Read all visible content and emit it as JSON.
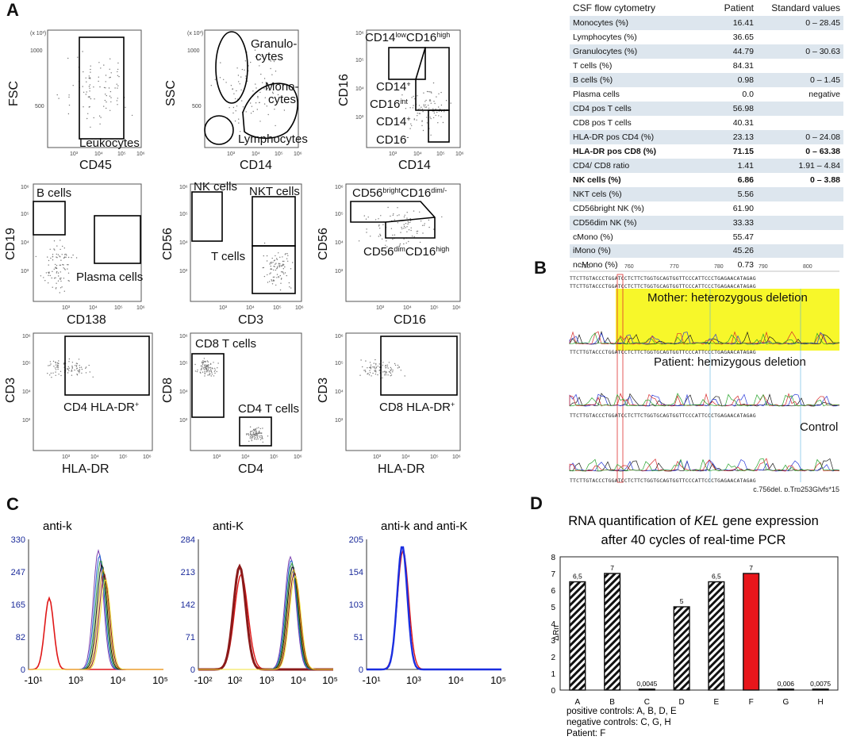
{
  "panels": {
    "a": "A",
    "b": "B",
    "c": "C",
    "d": "D"
  },
  "flow": {
    "p1": {
      "ylabel": "FSC",
      "xlabel": "CD45",
      "gate": "Leukocytes",
      "yunit": "(x 10³)",
      "yticks": [
        "1000",
        "500"
      ],
      "xticks": [
        "10³",
        "10⁴",
        "10⁵",
        "10⁶"
      ]
    },
    "p2": {
      "ylabel": "SSC",
      "xlabel": "CD14",
      "gran1": "Granulo-",
      "gran2": "cytes",
      "mono1": "Mono-",
      "mono2": "cytes",
      "lymph": "Lymphocytes",
      "yunit": "(x 10³)",
      "yticks": [
        "1000",
        "500"
      ],
      "xticks": [
        "10³",
        "10⁴",
        "10⁵",
        "10⁶"
      ]
    },
    "p3": {
      "ylabel": "CD16",
      "xlabel": "CD14",
      "top_a": "CD14",
      "top_sup1": "low",
      "top_b": "CD16",
      "top_sup2": "high",
      "mid1": "CD14",
      "mid1_sup": "+",
      "mid2": "CD16",
      "mid2_sup": "int",
      "low1": "CD14",
      "low1_sup": "+",
      "low2": "CD16",
      "low2_sup": "-",
      "yticks": [
        "10⁶",
        "10⁵",
        "10⁴",
        "10³"
      ],
      "xticks": [
        "10³",
        "10⁴",
        "10⁵",
        "10⁶"
      ]
    },
    "p4": {
      "ylabel": "CD19",
      "xlabel": "CD138",
      "bcells": "B cells",
      "plasma": "Plasma cells",
      "yticks": [
        "10⁶",
        "10⁵",
        "10⁴",
        "10³"
      ],
      "xticks": [
        "10³",
        "10⁴",
        "10⁵",
        "10⁶"
      ]
    },
    "p5": {
      "ylabel": "CD56",
      "xlabel": "CD3",
      "nk": "NK cells",
      "nkt": "NKT cells",
      "t": "T cells",
      "yticks": [
        "10⁶",
        "10⁵",
        "10⁴",
        "10³"
      ],
      "xticks": [
        "10³",
        "10⁴",
        "10⁵",
        "10⁶"
      ]
    },
    "p6": {
      "ylabel": "CD56",
      "xlabel": "CD16",
      "top_a": "CD56",
      "top_sup1": "bright",
      "top_b": "CD16",
      "top_sup2": "dim/-",
      "bot_a": "CD56",
      "bot_sup1": "dim",
      "bot_b": "CD16",
      "bot_sup2": "high",
      "yticks": [
        "10⁶",
        "10⁵",
        "10⁴",
        "10³"
      ],
      "xticks": [
        "10³",
        "10⁴",
        "10⁵",
        "10⁶"
      ]
    },
    "p7": {
      "ylabel": "CD3",
      "xlabel": "HLA-DR",
      "gate": "CD4 HLA-DR",
      "gate_sup": "+",
      "yticks": [
        "10⁶",
        "10⁵",
        "10⁴",
        "10³"
      ],
      "xticks": [
        "10³",
        "10⁴",
        "10⁵",
        "10⁶"
      ]
    },
    "p8": {
      "ylabel": "CD8",
      "xlabel": "CD4",
      "cd8": "CD8 T cells",
      "cd4": "CD4 T cells",
      "yticks": [
        "10⁶",
        "10⁵",
        "10⁴",
        "10³"
      ],
      "xticks": [
        "10³",
        "10⁴",
        "10⁵",
        "10⁶"
      ]
    },
    "p9": {
      "ylabel": "CD3",
      "xlabel": "HLA-DR",
      "gate": "CD8 HLA-DR",
      "gate_sup": "+",
      "yticks": [
        "10⁶",
        "10⁵",
        "10⁴",
        "10³"
      ],
      "xticks": [
        "10³",
        "10⁴",
        "10⁵",
        "10⁶"
      ]
    }
  },
  "table": {
    "headers": [
      "CSF flow cytometry",
      "Patient",
      "Standard values"
    ],
    "rows": [
      {
        "name": "Monocytes (%)",
        "patient": "16.41",
        "std": "0 – 28.45"
      },
      {
        "name": "Lymphocytes (%)",
        "patient": "36.65",
        "std": ""
      },
      {
        "name": "Granulocytes (%)",
        "patient": "44.79",
        "std": "0 – 30.63"
      },
      {
        "name": "T cells (%)",
        "patient": "84.31",
        "std": ""
      },
      {
        "name": "B cells (%)",
        "patient": "0.98",
        "std": "0 –  1.45"
      },
      {
        "name": "Plasma cells",
        "patient": "0.0",
        "std": "negative"
      },
      {
        "name": "CD4 pos T cells",
        "patient": "56.98",
        "std": ""
      },
      {
        "name": "CD8 pos T cells",
        "patient": "40.31",
        "std": ""
      },
      {
        "name": "HLA-DR pos CD4 (%)",
        "patient": "23.13",
        "std": "0 – 24.08"
      },
      {
        "name": "HLA-DR pos CD8 (%)",
        "patient": "71.15",
        "std": "0 – 63.38"
      },
      {
        "name": "CD4/ CD8 ratio",
        "patient": "1.41",
        "std": "1.91 – 4.84"
      },
      {
        "name": "NK cells (%)",
        "patient": "6.86",
        "std": "0 – 3.88"
      },
      {
        "name": "NKT cels (%)",
        "patient": "5.56",
        "std": ""
      },
      {
        "name": "CD56bright NK (%)",
        "patient": "61.90",
        "std": ""
      },
      {
        "name": "CD56dim NK (%)",
        "patient": "33.33",
        "std": ""
      },
      {
        "name": "cMono (%)",
        "patient": "55.47",
        "std": ""
      },
      {
        "name": "iMono (%)",
        "patient": "45.26",
        "std": ""
      },
      {
        "name": "ncMono (%)",
        "patient": "0.73",
        "std": ""
      }
    ]
  },
  "sequencing": {
    "positions": [
      "750",
      "760",
      "770",
      "780",
      "790",
      "800"
    ],
    "seq1": "TTCTTGTACCCTGGATCCTCTTCTGGTGCAGTGGTTCCCATTCCCTGAGAACATAGAG",
    "seq2": "TTCTTGTACCCTGGATCCTCTTCTGGTGCAGTGGTTCCCATTCCCTGAGAACATAGAG",
    "seq3": "TTCTTGTACCCTGGATCCTCTTCTGGTGCAGTGGTTCCCATTCCCTGAGAACATAGAG",
    "seq4": "TTCTTGTACCCTGGATCCTCTTCTGGTGCAGTGGTTCCCATTCCCTGAGAACATAGAG",
    "seq5": "TTCTTGTACCCTGGATCCTCTTCTGGTGCAGTGGTTCCCATTCCCTGAGAACATAGAG",
    "mother": "Mother: heterozygous deletion",
    "patient": "Patient: hemizygous deletion",
    "control": "Control",
    "mutation": "c.756del, p.Trp253Glyfs*15",
    "highlight_color": "#f7f72a"
  },
  "histograms": [
    {
      "title": "anti-k",
      "yticks": [
        "330",
        "247",
        "165",
        "82",
        "0"
      ],
      "xticks": [
        "-10¹",
        "10³",
        "10⁴",
        "10⁵"
      ]
    },
    {
      "title": "anti-K",
      "yticks": [
        "284",
        "213",
        "142",
        "71",
        "0"
      ],
      "xticks": [
        "-10²",
        "10²",
        "10³",
        "10⁴",
        "10⁵"
      ]
    },
    {
      "title": "anti-k and anti-K",
      "yticks": [
        "205",
        "154",
        "103",
        "51",
        "0"
      ],
      "xticks": [
        "-10¹",
        "10³",
        "10⁴",
        "10⁵"
      ]
    }
  ],
  "chart_data": {
    "type": "bar",
    "title_pre": "RNA quantification of ",
    "title_gene": "KEL",
    "title_post": " gene expression",
    "title_line2": "after 40 cycles of real-time PCR",
    "ylabel": "ΔRn",
    "ylim": [
      0,
      8
    ],
    "yticks": [
      "0",
      "1",
      "2",
      "3",
      "4",
      "5",
      "6",
      "7",
      "8"
    ],
    "categories": [
      "A",
      "B",
      "C",
      "D",
      "E",
      "F",
      "G",
      "H"
    ],
    "values": [
      6.5,
      7,
      0.0045,
      5,
      6.5,
      7,
      0.006,
      0.0075
    ],
    "labels": [
      "6,5",
      "7",
      "0,0045",
      "5",
      "6,5",
      "7",
      "0,006",
      "0,0075"
    ],
    "patient_index": 5,
    "patient_color": "#e8161b",
    "legend": [
      "positive controls: A, B, D, E",
      "negative controls: C, G, H",
      "Patient: F"
    ]
  }
}
